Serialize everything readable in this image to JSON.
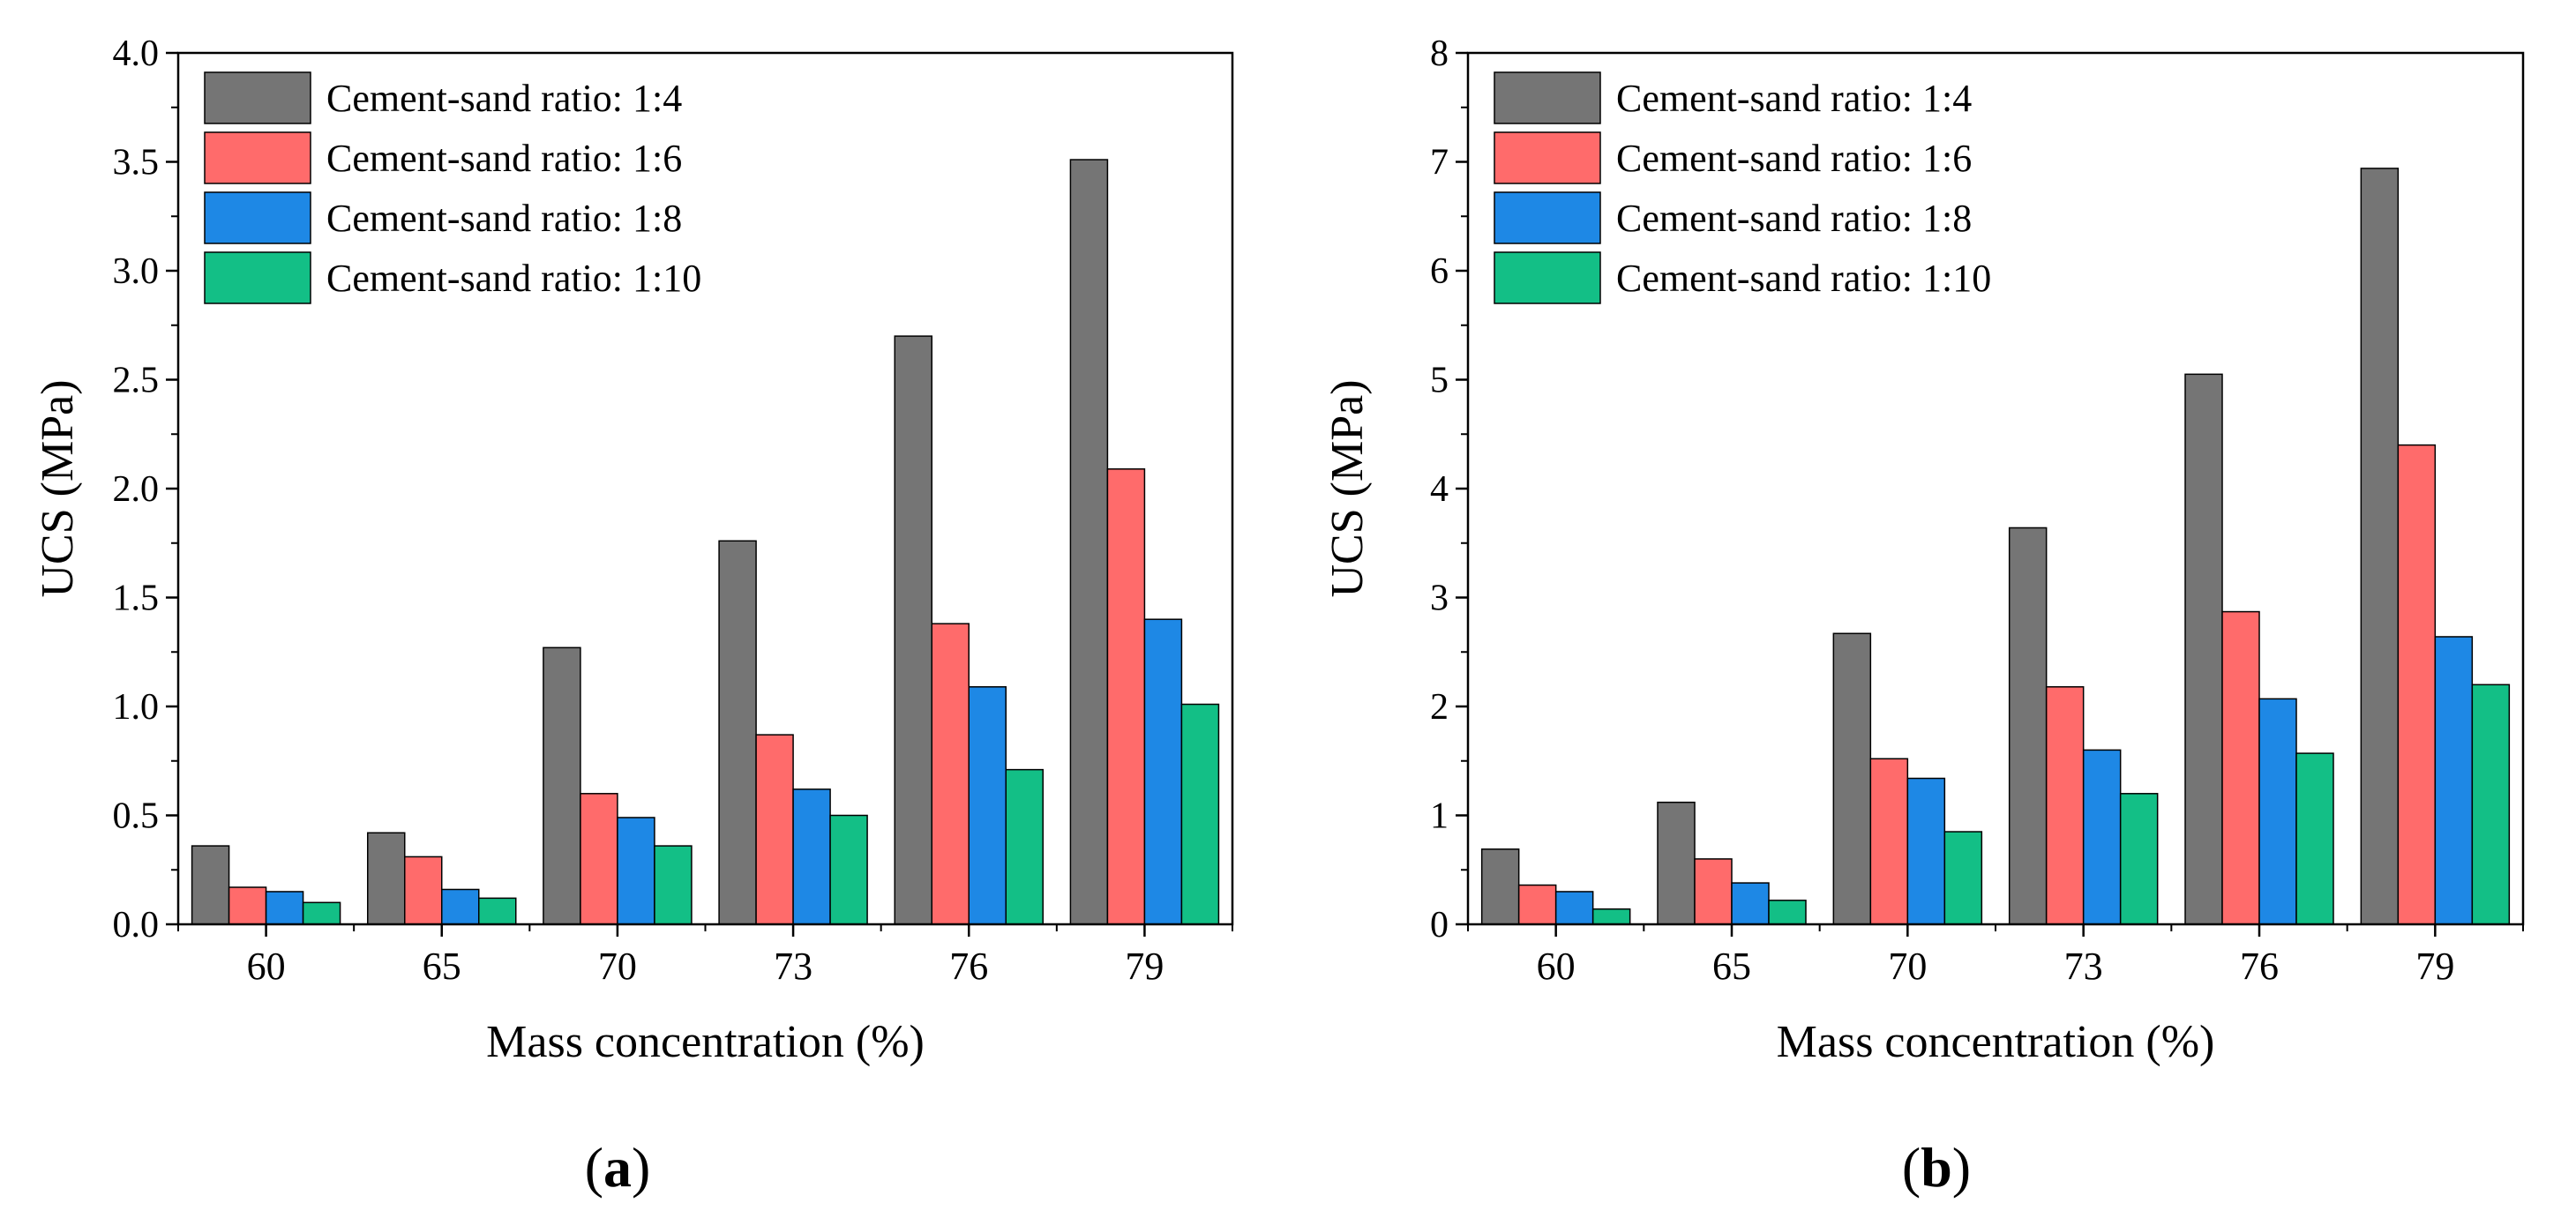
{
  "chart_data": [
    {
      "type": "bar",
      "panel_label": "a",
      "xlabel": "Mass concentration (%)",
      "ylabel": "UCS (MPa)",
      "ylim": [
        0,
        4.0
      ],
      "yticks": [
        "0.0",
        "0.5",
        "1.0",
        "1.5",
        "2.0",
        "2.5",
        "3.0",
        "3.5",
        "4.0"
      ],
      "categories": [
        "60",
        "65",
        "70",
        "73",
        "76",
        "79"
      ],
      "legend_position": "top-left",
      "series": [
        {
          "name": "Cement-sand ratio: 1:4",
          "color": "#757575",
          "values": [
            0.36,
            0.42,
            1.27,
            1.76,
            2.7,
            3.51
          ]
        },
        {
          "name": "Cement-sand ratio: 1:6",
          "color": "#ff6b6b",
          "values": [
            0.17,
            0.31,
            0.6,
            0.87,
            1.38,
            2.09
          ]
        },
        {
          "name": "Cement-sand ratio: 1:8",
          "color": "#1e88e5",
          "values": [
            0.15,
            0.16,
            0.49,
            0.62,
            1.09,
            1.4
          ]
        },
        {
          "name": "Cement-sand ratio: 1:10",
          "color": "#13bf86",
          "values": [
            0.1,
            0.12,
            0.36,
            0.5,
            0.71,
            1.01
          ]
        }
      ]
    },
    {
      "type": "bar",
      "panel_label": "b",
      "xlabel": "Mass concentration (%)",
      "ylabel": "UCS (MPa)",
      "ylim": [
        0,
        8
      ],
      "yticks": [
        "0",
        "1",
        "2",
        "3",
        "4",
        "5",
        "6",
        "7",
        "8"
      ],
      "categories": [
        "60",
        "65",
        "70",
        "73",
        "76",
        "79"
      ],
      "legend_position": "top-left",
      "series": [
        {
          "name": "Cement-sand ratio: 1:4",
          "color": "#757575",
          "values": [
            0.69,
            1.12,
            2.67,
            3.64,
            5.05,
            6.94
          ]
        },
        {
          "name": "Cement-sand ratio: 1:6",
          "color": "#ff6b6b",
          "values": [
            0.36,
            0.6,
            1.52,
            2.18,
            2.87,
            4.4
          ]
        },
        {
          "name": "Cement-sand ratio: 1:8",
          "color": "#1e88e5",
          "values": [
            0.3,
            0.38,
            1.34,
            1.6,
            2.07,
            2.64
          ]
        },
        {
          "name": "Cement-sand ratio: 1:10",
          "color": "#13bf86",
          "values": [
            0.14,
            0.22,
            0.85,
            1.2,
            1.57,
            2.2
          ]
        }
      ]
    }
  ]
}
